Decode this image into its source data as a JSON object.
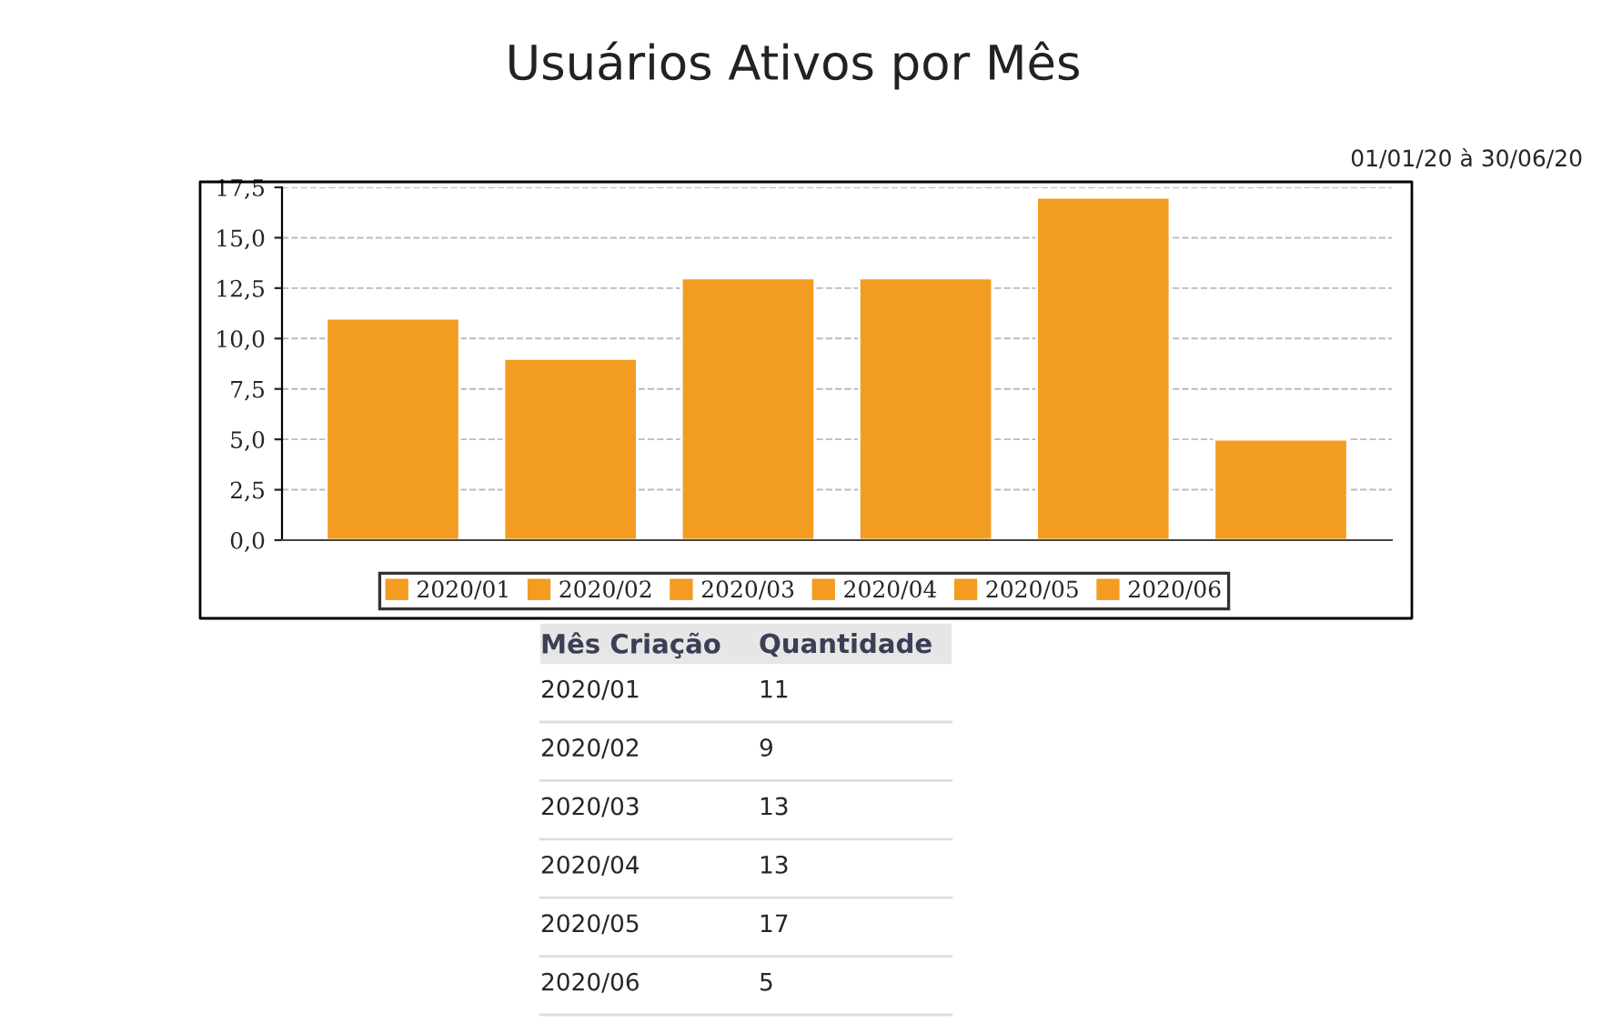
{
  "chart_data": [
    {
      "type": "bar",
      "title": "Usuários Ativos por Mês",
      "categories": [
        null
      ],
      "series": [
        {
          "name": "2020/01",
          "color": "#f39c22",
          "values": [
            11
          ]
        },
        {
          "name": "2020/02",
          "color": "#f39c22",
          "values": [
            9
          ]
        },
        {
          "name": "2020/03",
          "color": "#f39c22",
          "values": [
            13
          ]
        },
        {
          "name": "2020/04",
          "color": "#f39c22",
          "values": [
            13
          ]
        },
        {
          "name": "2020/05",
          "color": "#f39c22",
          "values": [
            17
          ]
        },
        {
          "name": "2020/06",
          "color": "#f39c22",
          "values": [
            5
          ]
        }
      ],
      "ylim": [
        0,
        17.5
      ],
      "yticks": [
        {
          "value": 0,
          "label": "0,0"
        },
        {
          "value": 2.5,
          "label": "2,5"
        },
        {
          "value": 5,
          "label": "5,0"
        },
        {
          "value": 7.5,
          "label": "7,5"
        },
        {
          "value": 10,
          "label": "10,0"
        },
        {
          "value": 12.5,
          "label": "12,5"
        },
        {
          "value": 15,
          "label": "15,0"
        },
        {
          "value": 17.5,
          "label": "17,5"
        }
      ],
      "grid": "y",
      "legend": "bottom",
      "tick_labels": "y",
      "annotations": [
        "01/01/20 à 30/06/20"
      ]
    },
    {
      "type": "other",
      "categories": [
        "2020/01",
        "2020/02",
        "2020/03",
        "2020/04",
        "2020/05",
        "2020/06"
      ],
      "values": [
        11,
        9,
        13,
        13,
        17,
        5
      ],
      "data_labels": true,
      "annotations": [
        "Mês Criação",
        "Quantidade"
      ]
    }
  ]
}
